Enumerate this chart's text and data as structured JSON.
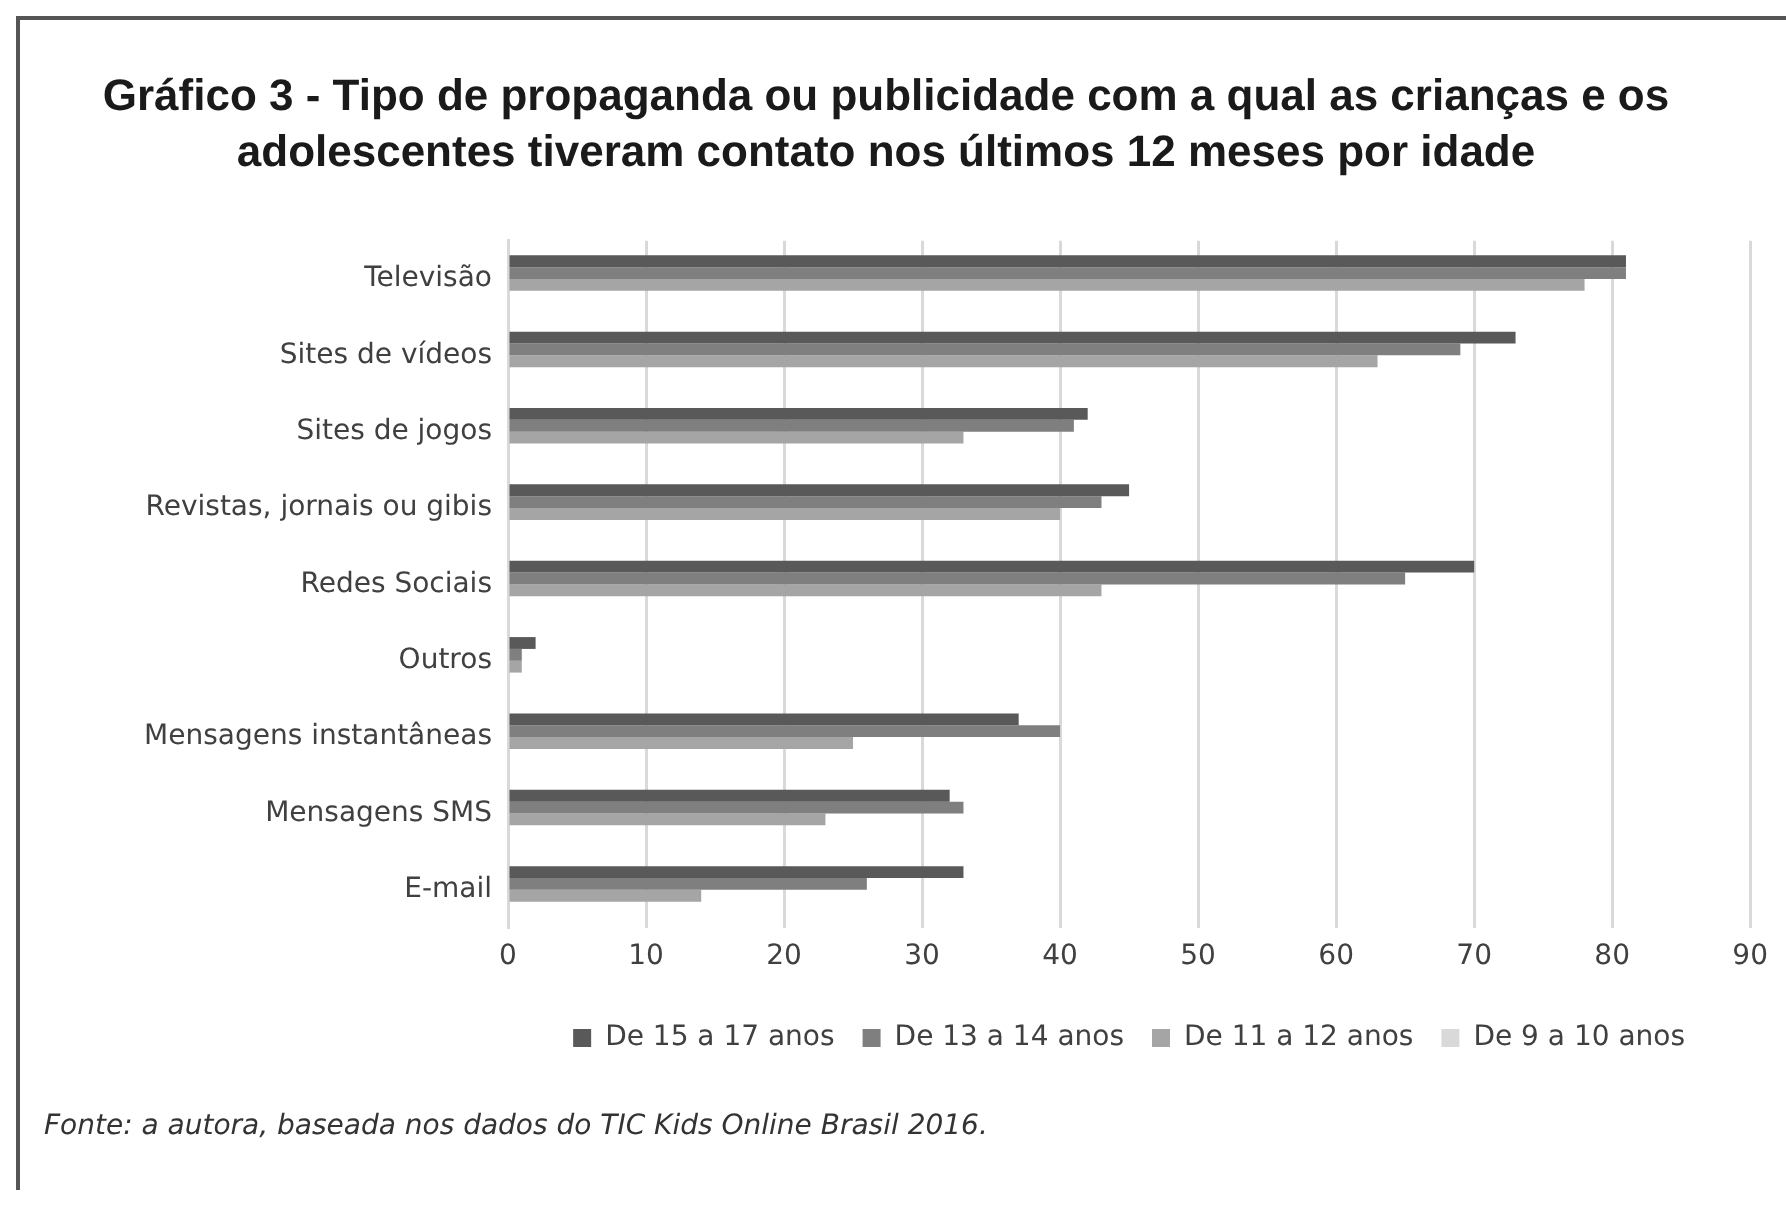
{
  "chart_data": {
    "type": "bar",
    "orientation": "horizontal",
    "title": "Gráfico 3 - Tipo de propaganda ou publicidade com a qual as crianças e os adolescentes tiveram contato nos últimos 12 meses por idade",
    "categories": [
      "Televisão",
      "Sites de vídeos",
      "Sites de jogos",
      "Revistas, jornais ou gibis",
      "Redes Sociais",
      "Outros",
      "Mensagens instantâneas",
      "Mensagens SMS",
      "E-mail"
    ],
    "series": [
      {
        "name": "De 15 a 17 anos",
        "color": "#595959",
        "values": [
          81,
          73,
          42,
          45,
          70,
          2,
          37,
          32,
          33
        ]
      },
      {
        "name": "De 13 a 14 anos",
        "color": "#7f7f7f",
        "values": [
          81,
          69,
          41,
          43,
          65,
          1,
          40,
          33,
          26
        ]
      },
      {
        "name": "De 11 a 12 anos",
        "color": "#a5a5a5",
        "values": [
          78,
          63,
          33,
          40,
          43,
          1,
          25,
          23,
          14
        ]
      },
      {
        "name": "De 9 a 10 anos",
        "color": "#d9d9d9",
        "values": [
          null,
          null,
          null,
          null,
          null,
          null,
          null,
          null,
          null
        ]
      }
    ],
    "xlim": [
      0,
      90
    ],
    "xticks": [
      0,
      10,
      20,
      30,
      40,
      50,
      60,
      70,
      80,
      90
    ],
    "grid": "x",
    "legend": "bottom",
    "annotations": [
      "Fonte: a autora, baseada nos dados do TIC Kids Online Brasil 2016."
    ]
  }
}
